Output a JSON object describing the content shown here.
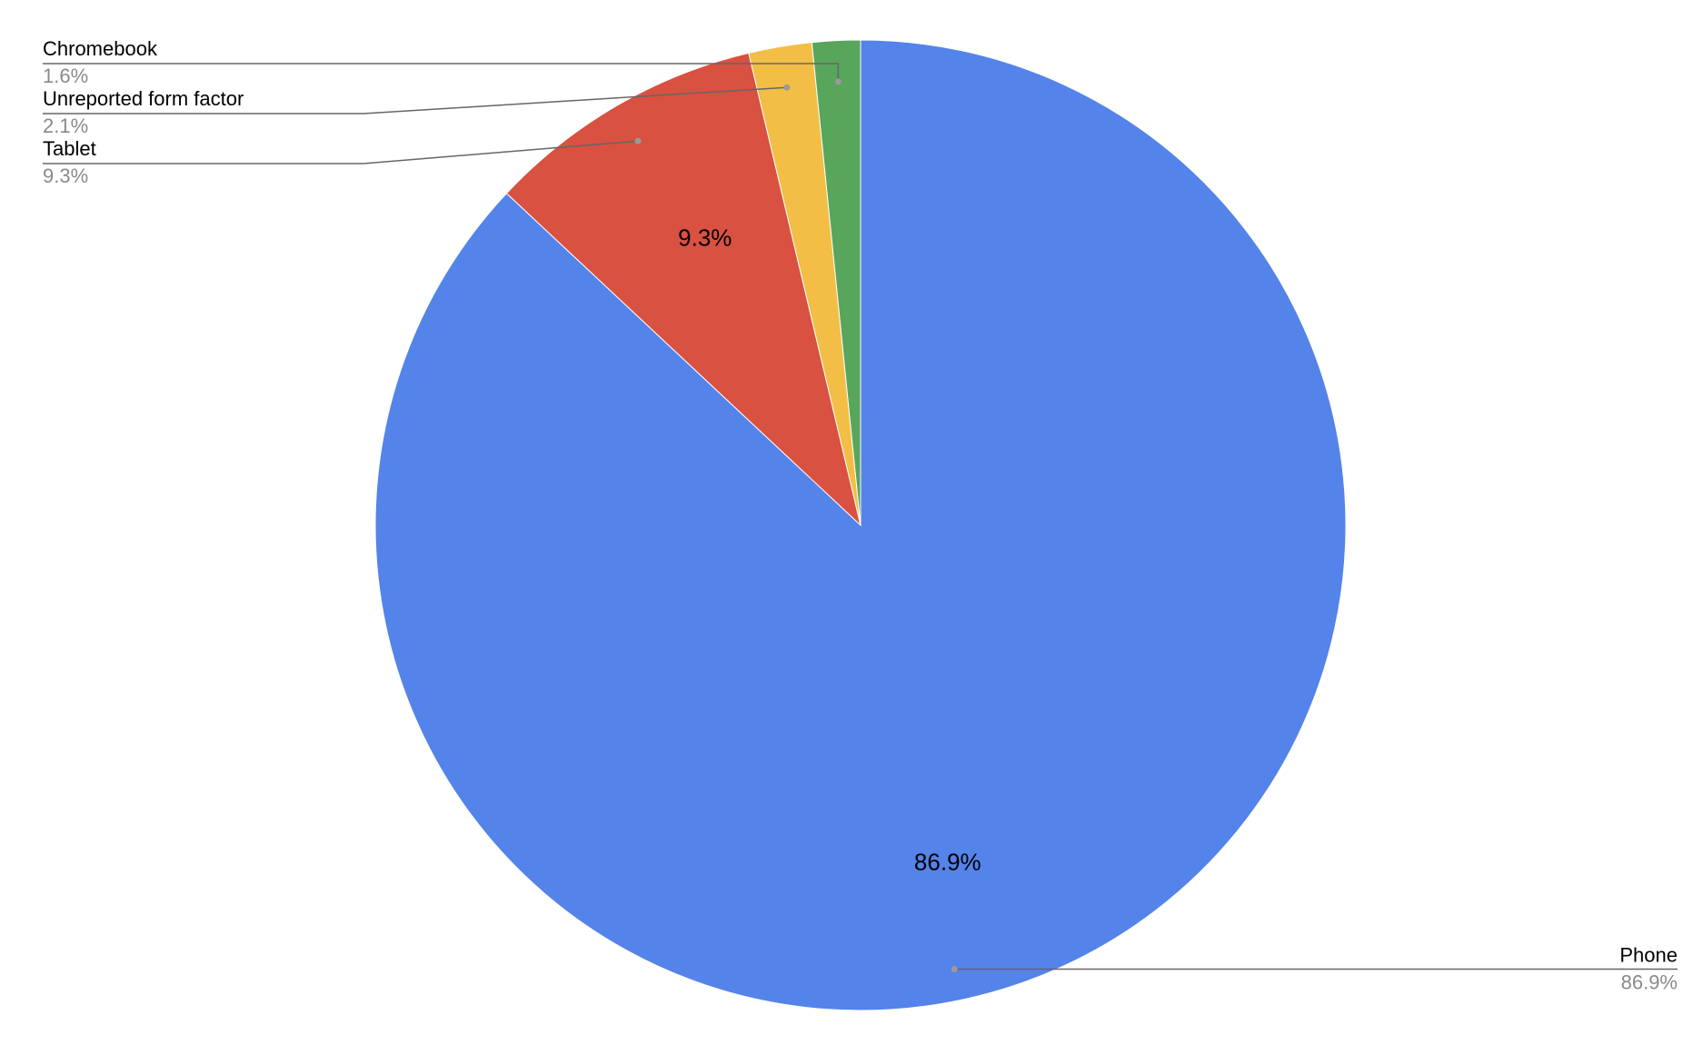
{
  "chart_data": {
    "type": "pie",
    "title": "",
    "start_angle_deg": 0,
    "direction": "clockwise",
    "legend": "callouts",
    "slices": [
      {
        "label": "Phone",
        "value": 86.9,
        "display": "86.9%",
        "color": "#5483e9",
        "inner_label": "86.9%",
        "callout_side": "right"
      },
      {
        "label": "Tablet",
        "value": 9.3,
        "display": "9.3%",
        "color": "#d95140",
        "inner_label": "9.3%",
        "callout_side": "left"
      },
      {
        "label": "Unreported form factor",
        "value": 2.1,
        "display": "2.1%",
        "color": "#f2be45",
        "inner_label": "",
        "callout_side": "left"
      },
      {
        "label": "Chromebook",
        "value": 1.6,
        "display": "1.6%",
        "color": "#58a55c",
        "inner_label": "",
        "callout_side": "left"
      }
    ]
  }
}
